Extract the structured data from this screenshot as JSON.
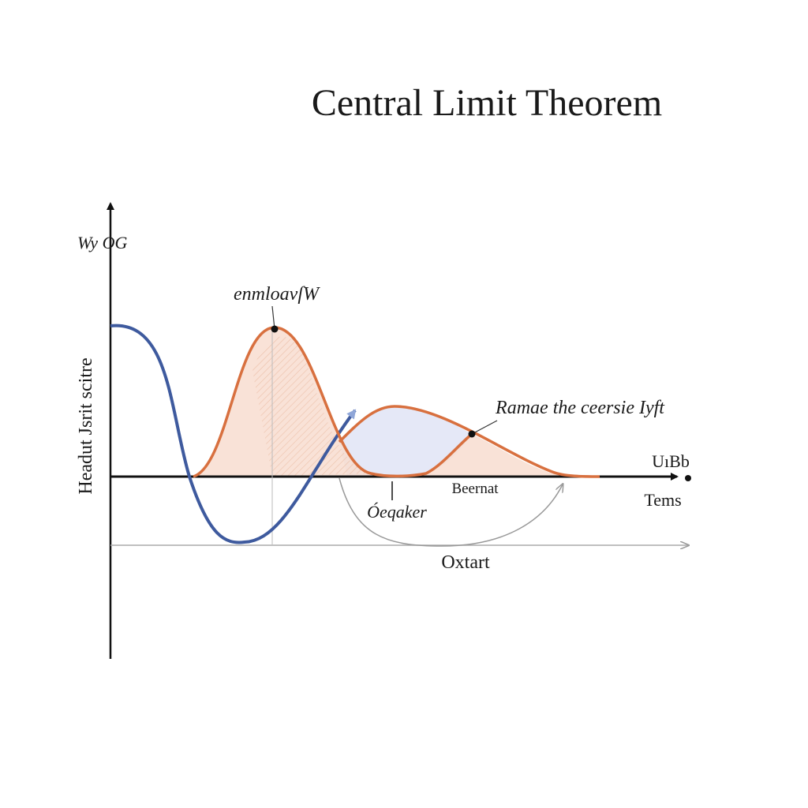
{
  "title": "Central Limit Theorem",
  "y_axis_top_label": "Wy OG",
  "y_axis_label": "Headut Jsrit scitre",
  "peak_label": "enmloavſW",
  "curve_label": "Ramae the ceersie Iyft",
  "axis_end_label": "UıBb",
  "x_axis_label": "Tems",
  "marker_label": "Beernat",
  "arc_label": "Óeqaker",
  "lower_axis_label": "Oxtart"
}
